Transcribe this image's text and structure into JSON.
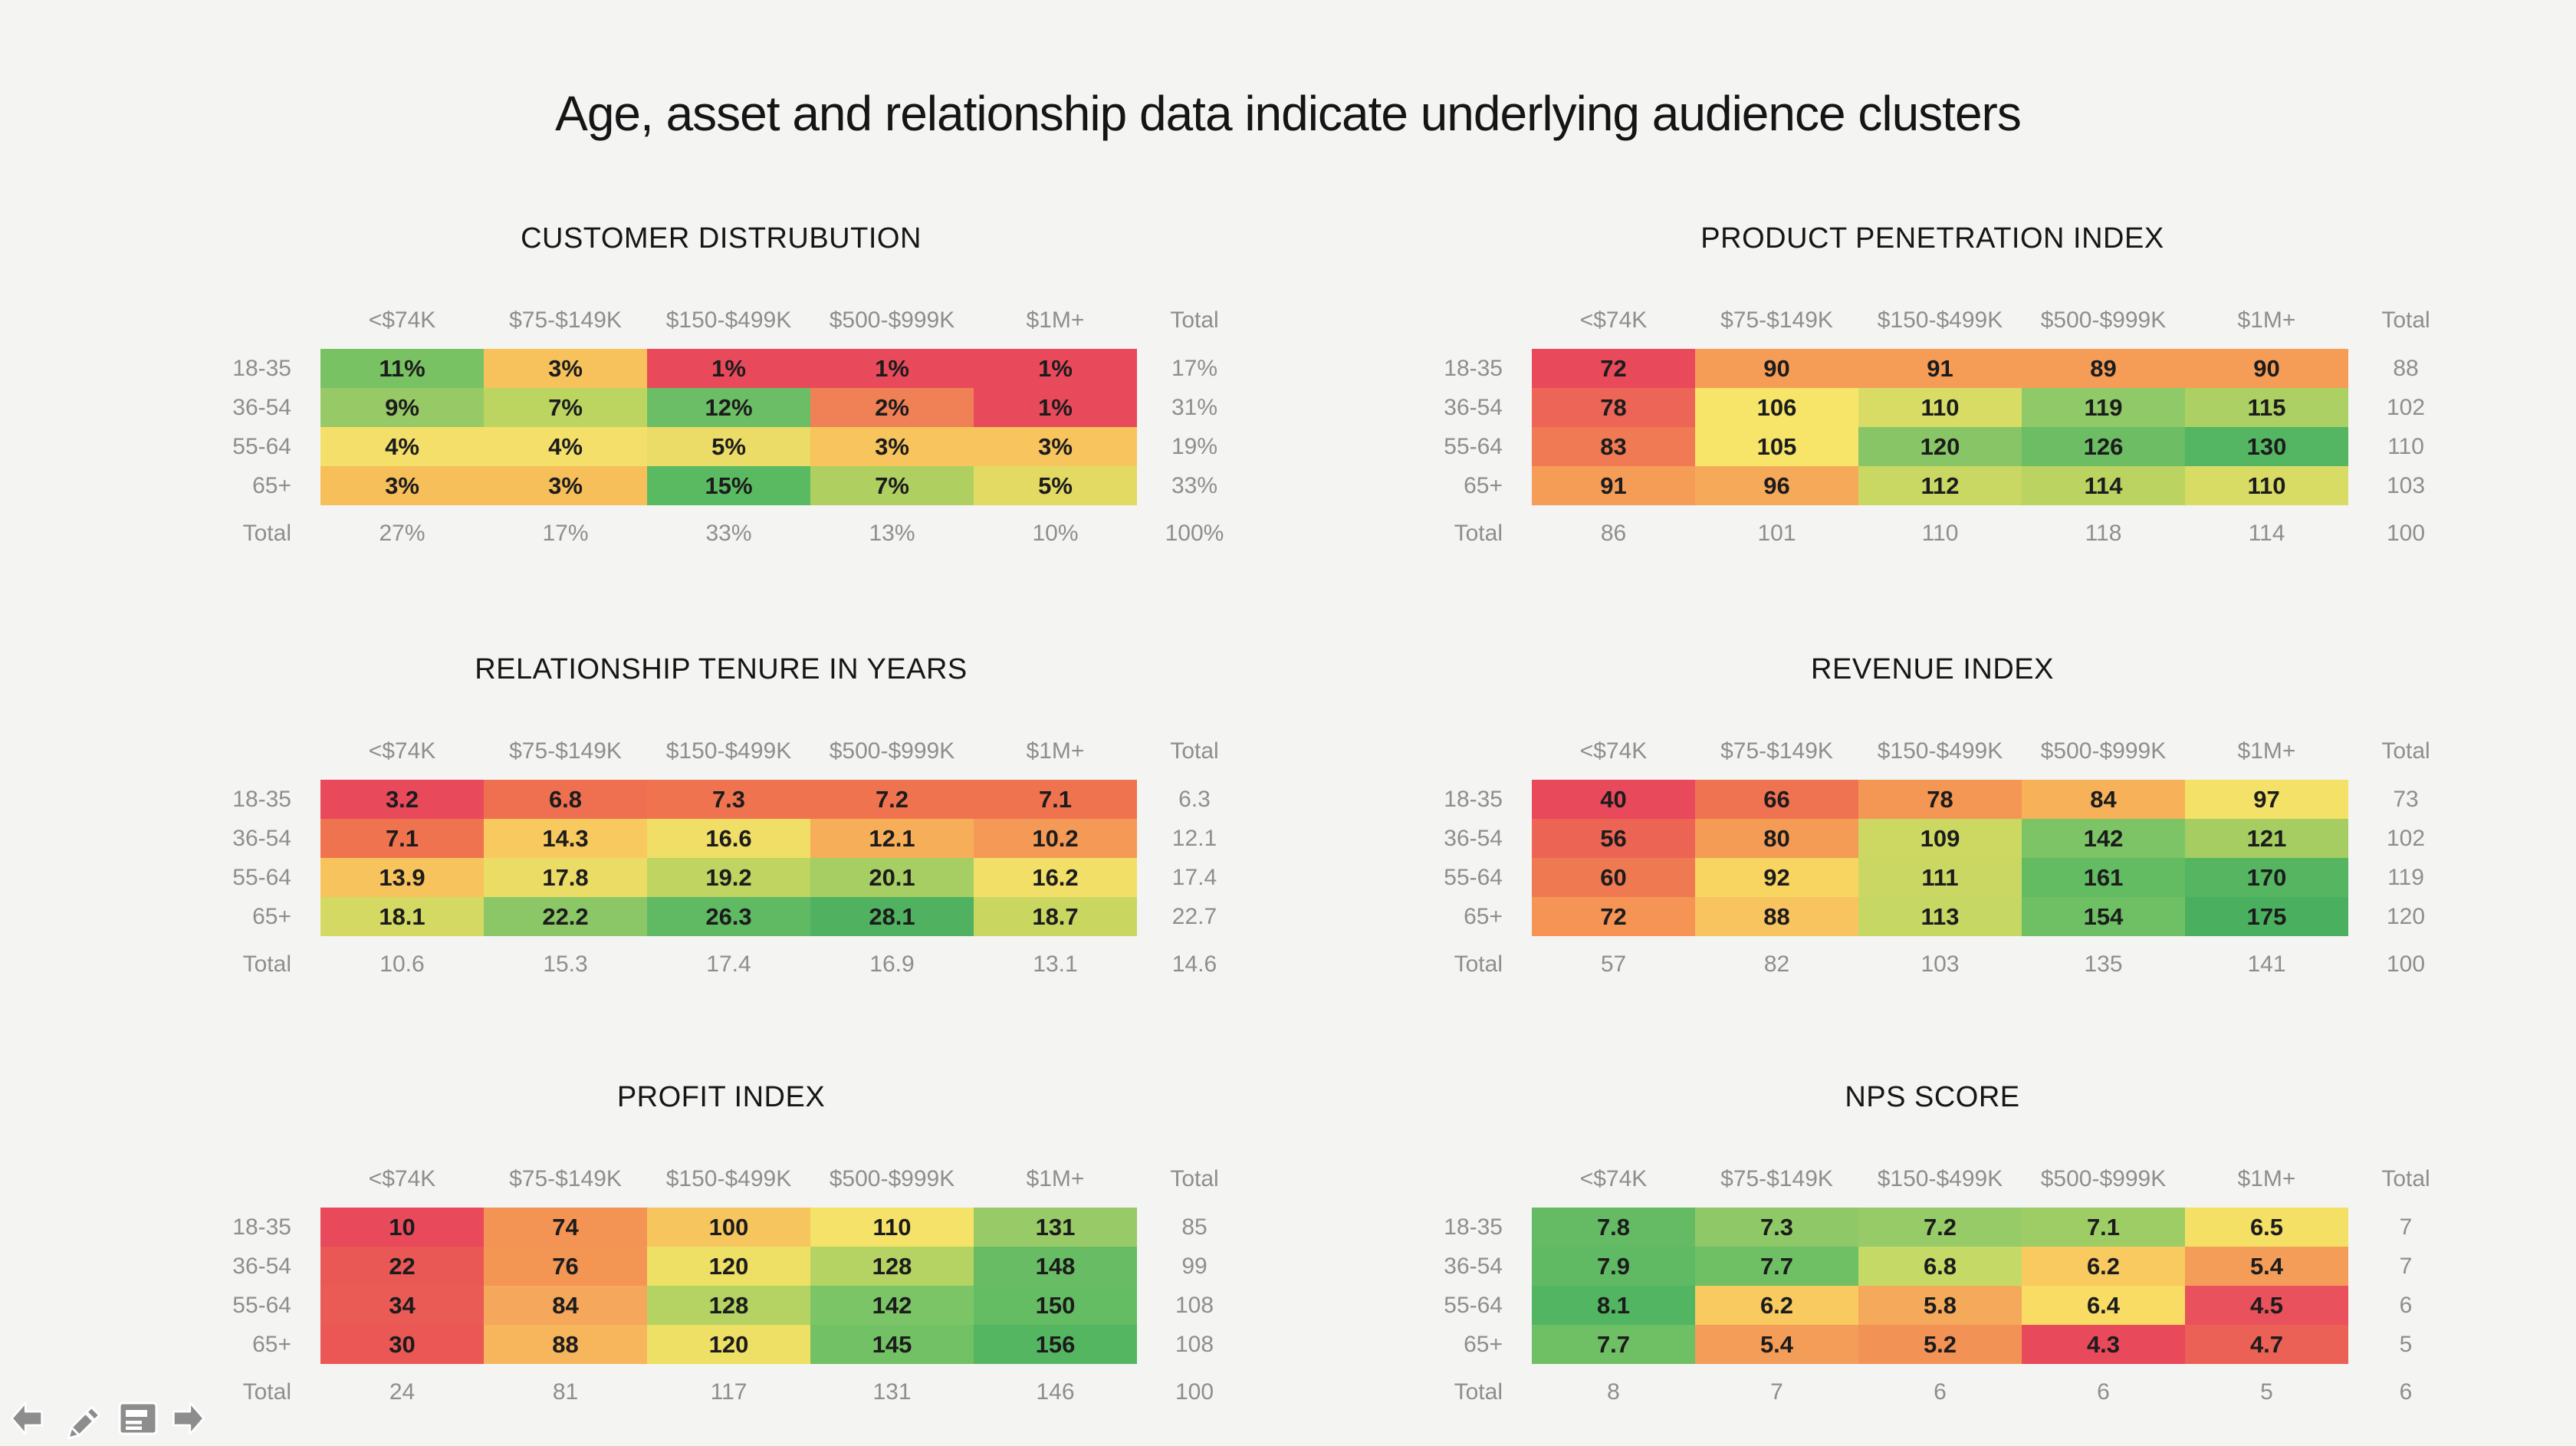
{
  "slide": {
    "title": "Age, asset and relationship data indicate underlying audience clusters",
    "background_color": "#f4f4f3",
    "label_gray": "#8e8e8e",
    "cell_text_color": "#1c1c1c"
  },
  "toolbar": {
    "icons": [
      {
        "name": "previous-slide-arrow-icon"
      },
      {
        "name": "pencil-annotate-icon"
      },
      {
        "name": "notes-icon"
      },
      {
        "name": "next-slide-arrow-icon"
      }
    ]
  },
  "chart_data": [
    {
      "type": "heatmap",
      "title": "CUSTOMER DISTRUBUTION",
      "columns": [
        "<$74K",
        "$75-$149K",
        "$150-$499K",
        "$500-$999K",
        "$1M+"
      ],
      "rows": [
        "18-35",
        "36-54",
        "55-64",
        "65+"
      ],
      "total_label": "Total",
      "values": [
        [
          "11%",
          "3%",
          "1%",
          "1%",
          "1%"
        ],
        [
          "9%",
          "7%",
          "12%",
          "2%",
          "1%"
        ],
        [
          "4%",
          "4%",
          "5%",
          "3%",
          "3%"
        ],
        [
          "3%",
          "3%",
          "15%",
          "7%",
          "5%"
        ]
      ],
      "colors": [
        [
          "#79C263",
          "#F7C25B",
          "#E8495B",
          "#E8495B",
          "#E8495B"
        ],
        [
          "#97CA66",
          "#BCD561",
          "#6BBE65",
          "#F08055",
          "#E8495B"
        ],
        [
          "#F3DF6A",
          "#F3DF6A",
          "#EADC66",
          "#F7C45D",
          "#F7C45D"
        ],
        [
          "#F7BF5A",
          "#F7BF5A",
          "#5ABA62",
          "#AFD061",
          "#E3DA63"
        ]
      ],
      "row_totals": [
        "17%",
        "31%",
        "19%",
        "33%"
      ],
      "col_totals": [
        "27%",
        "17%",
        "33%",
        "13%",
        "10%"
      ],
      "grand_total": "100%"
    },
    {
      "type": "heatmap",
      "title": "PRODUCT PENETRATION INDEX",
      "columns": [
        "<$74K",
        "$75-$149K",
        "$150-$499K",
        "$500-$999K",
        "$1M+"
      ],
      "rows": [
        "18-35",
        "36-54",
        "55-64",
        "65+"
      ],
      "total_label": "Total",
      "values": [
        [
          "72",
          "90",
          "91",
          "89",
          "90"
        ],
        [
          "78",
          "106",
          "110",
          "119",
          "115"
        ],
        [
          "83",
          "105",
          "120",
          "126",
          "130"
        ],
        [
          "91",
          "96",
          "112",
          "114",
          "110"
        ]
      ],
      "colors": [
        [
          "#E8495B",
          "#F59C56",
          "#F59C56",
          "#F59C56",
          "#F59C56"
        ],
        [
          "#EC6556",
          "#F6E569",
          "#D8DC64",
          "#90C967",
          "#ACD063"
        ],
        [
          "#F07A53",
          "#F6E569",
          "#88C566",
          "#6CBD64",
          "#54B662"
        ],
        [
          "#F59C56",
          "#F6A958",
          "#C9D862",
          "#BBD461",
          "#D8DC64"
        ]
      ],
      "row_totals": [
        "88",
        "102",
        "110",
        "103"
      ],
      "col_totals": [
        "86",
        "101",
        "110",
        "118",
        "114"
      ],
      "grand_total": "100"
    },
    {
      "type": "heatmap",
      "title": "RELATIONSHIP TENURE IN YEARS",
      "columns": [
        "<$74K",
        "$75-$149K",
        "$150-$499K",
        "$500-$999K",
        "$1M+"
      ],
      "rows": [
        "18-35",
        "36-54",
        "55-64",
        "65+"
      ],
      "total_label": "Total",
      "values": [
        [
          "3.2",
          "6.8",
          "7.3",
          "7.2",
          "7.1"
        ],
        [
          "7.1",
          "14.3",
          "16.6",
          "12.1",
          "10.2"
        ],
        [
          "13.9",
          "17.8",
          "19.2",
          "20.1",
          "16.2"
        ],
        [
          "18.1",
          "22.2",
          "26.3",
          "28.1",
          "18.7"
        ]
      ],
      "colors": [
        [
          "#E8495B",
          "#EF7050",
          "#F0734F",
          "#F0734F",
          "#F0734F"
        ],
        [
          "#F0734F",
          "#F7C95E",
          "#F0DE67",
          "#F6AE59",
          "#F49956"
        ],
        [
          "#F7C35C",
          "#EBDC66",
          "#BFD461",
          "#A6CE63",
          "#F1DF67"
        ],
        [
          "#D3D962",
          "#8CC767",
          "#60B963",
          "#50B261",
          "#C9D761"
        ]
      ],
      "row_totals": [
        "6.3",
        "12.1",
        "17.4",
        "22.7"
      ],
      "col_totals": [
        "10.6",
        "15.3",
        "17.4",
        "16.9",
        "13.1"
      ],
      "grand_total": "14.6"
    },
    {
      "type": "heatmap",
      "title": "REVENUE INDEX",
      "columns": [
        "<$74K",
        "$75-$149K",
        "$150-$499K",
        "$500-$999K",
        "$1M+"
      ],
      "rows": [
        "18-35",
        "36-54",
        "55-64",
        "65+"
      ],
      "total_label": "Total",
      "values": [
        [
          "40",
          "66",
          "78",
          "84",
          "97"
        ],
        [
          "56",
          "80",
          "109",
          "142",
          "121"
        ],
        [
          "60",
          "92",
          "111",
          "161",
          "170"
        ],
        [
          "72",
          "88",
          "113",
          "154",
          "175"
        ]
      ],
      "colors": [
        [
          "#E8495B",
          "#EF7350",
          "#F49755",
          "#F6B159",
          "#F3E168"
        ],
        [
          "#EC6453",
          "#F49B55",
          "#CCD862",
          "#7CC466",
          "#A5CD62"
        ],
        [
          "#EF7A52",
          "#F8D561",
          "#CAD863",
          "#63BB62",
          "#55B561"
        ],
        [
          "#F59455",
          "#F8C45F",
          "#C6D763",
          "#6FC064",
          "#4AB05F"
        ]
      ],
      "row_totals": [
        "73",
        "102",
        "119",
        "120"
      ],
      "col_totals": [
        "57",
        "82",
        "103",
        "135",
        "141"
      ],
      "grand_total": "100"
    },
    {
      "type": "heatmap",
      "title": "PROFIT INDEX",
      "columns": [
        "<$74K",
        "$75-$149K",
        "$150-$499K",
        "$500-$999K",
        "$1M+"
      ],
      "rows": [
        "18-35",
        "36-54",
        "55-64",
        "65+"
      ],
      "total_label": "Total",
      "values": [
        [
          "10",
          "74",
          "100",
          "110",
          "131"
        ],
        [
          "22",
          "76",
          "120",
          "128",
          "148"
        ],
        [
          "34",
          "84",
          "128",
          "142",
          "150"
        ],
        [
          "30",
          "88",
          "120",
          "145",
          "156"
        ]
      ],
      "colors": [
        [
          "#E84A5C",
          "#F39454",
          "#F7C55E",
          "#F5E268",
          "#98CB67"
        ],
        [
          "#EA5856",
          "#F39654",
          "#EEDF65",
          "#B4D363",
          "#68BD64"
        ],
        [
          "#EB5B55",
          "#F5A75B",
          "#B4D363",
          "#7CC566",
          "#64BC63"
        ],
        [
          "#EA5754",
          "#F7B55C",
          "#EEDF65",
          "#72C165",
          "#55B662"
        ]
      ],
      "row_totals": [
        "85",
        "99",
        "108",
        "108"
      ],
      "col_totals": [
        "24",
        "81",
        "117",
        "131",
        "146"
      ],
      "grand_total": "100"
    },
    {
      "type": "heatmap",
      "title": "NPS SCORE",
      "columns": [
        "<$74K",
        "$75-$149K",
        "$150-$499K",
        "$500-$999K",
        "$1M+"
      ],
      "rows": [
        "18-35",
        "36-54",
        "55-64",
        "65+"
      ],
      "total_label": "Total",
      "values": [
        [
          "7.8",
          "7.3",
          "7.2",
          "7.1",
          "6.5"
        ],
        [
          "7.9",
          "7.7",
          "6.8",
          "6.2",
          "5.4"
        ],
        [
          "8.1",
          "6.2",
          "5.8",
          "6.4",
          "4.5"
        ],
        [
          "7.7",
          "5.4",
          "5.2",
          "4.3",
          "4.7"
        ]
      ],
      "colors": [
        [
          "#64BB64",
          "#8FC967",
          "#96CB67",
          "#9ECD66",
          "#F5E066"
        ],
        [
          "#5FBA63",
          "#6FBF64",
          "#C4D966",
          "#F8CA5F",
          "#F49D58"
        ],
        [
          "#51B561",
          "#F8CA5F",
          "#F5A95B",
          "#F8DC64",
          "#E9525C"
        ],
        [
          "#6FBF64",
          "#F49D58",
          "#F29355",
          "#E8495B",
          "#EC6156"
        ]
      ],
      "row_totals": [
        "7",
        "7",
        "6",
        "5"
      ],
      "col_totals": [
        "8",
        "7",
        "6",
        "6",
        "5"
      ],
      "grand_total": "6"
    }
  ]
}
